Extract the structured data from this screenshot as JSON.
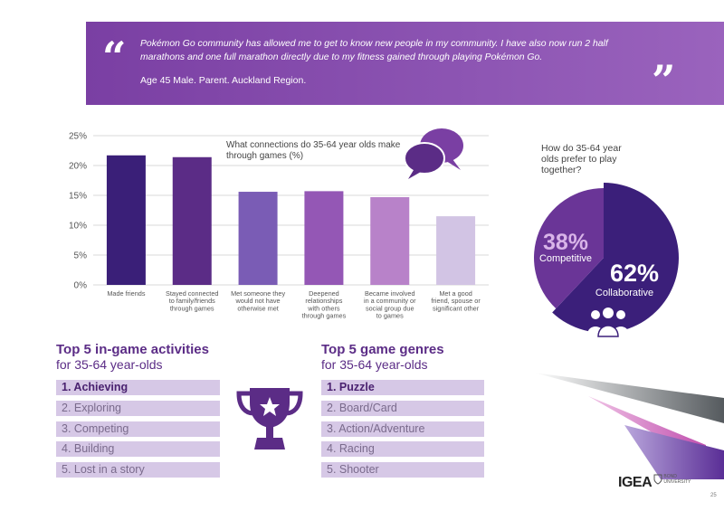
{
  "quote": {
    "text": "Pokémon Go community has allowed me to get to know new people in my community. I have also now run 2 half marathons and one full marathon directly due to my fitness gained through playing Pokémon Go.",
    "attribution": "Age 45 Male. Parent. Auckland Region.",
    "open_mark": "“",
    "close_mark": "”"
  },
  "chart_data": {
    "type": "bar",
    "title": "What connections do 35-64 year olds make through games (%)",
    "categories": [
      "Made friends",
      "Stayed connected to family/friends through games",
      "Met someone they would not have otherwise met",
      "Deepened relationships with others through games",
      "Became involved in a community or social group due to games",
      "Met a good friend, spouse or significant other"
    ],
    "values": [
      21.7,
      21.4,
      15.6,
      15.7,
      14.7,
      11.5
    ],
    "ylim": [
      0,
      25
    ],
    "yticks": [
      "0%",
      "5%",
      "10%",
      "15%",
      "20%",
      "25%"
    ],
    "grid": true,
    "colors": [
      "#3a1f78",
      "#5b2c86",
      "#7a5cb5",
      "#9457b5",
      "#b882c9",
      "#d2c4e4"
    ]
  },
  "pie": {
    "question": "How do 35-64 year olds prefer to play together?",
    "slices": [
      {
        "label": "Collaborative",
        "value": 62,
        "display": "62%",
        "color": "#3b1f7a"
      },
      {
        "label": "Competitive",
        "value": 38,
        "display": "38%",
        "color": "#6a3597"
      }
    ]
  },
  "activities": {
    "title": "Top 5 in-game activities",
    "subtitle": "for 35-64 year-olds",
    "items": [
      "1. Achieving",
      "2. Exploring",
      "3. Competing",
      "4. Building",
      "5. Lost in a story"
    ]
  },
  "genres": {
    "title": "Top 5 game genres",
    "subtitle": "for 35-64 year-olds",
    "items": [
      "1. Puzzle",
      "2. Board/Card",
      "3. Action/Adventure",
      "4. Racing",
      "5. Shooter"
    ]
  },
  "footer": {
    "logo_text": "IGEA",
    "partner_text": "BOND UNIVERSITY",
    "page_number": "25"
  }
}
